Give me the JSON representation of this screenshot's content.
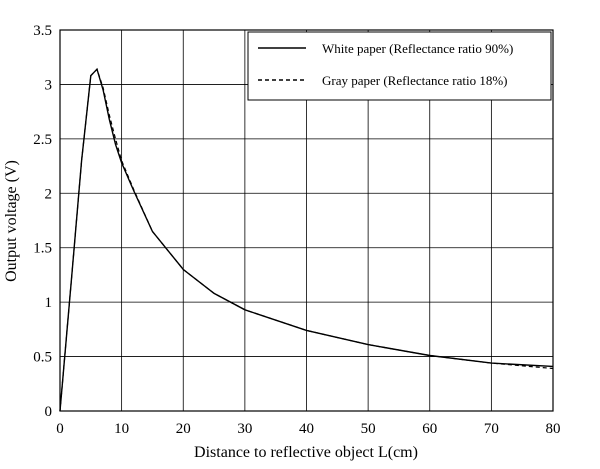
{
  "chart_data": {
    "type": "line",
    "title": "",
    "xlabel": "Distance to reflective object L(cm)",
    "ylabel": "Output voltage (V)",
    "xlim": [
      0,
      80
    ],
    "ylim": [
      0,
      3.5
    ],
    "x_ticks": [
      "0",
      "10",
      "20",
      "30",
      "40",
      "50",
      "60",
      "70",
      "80"
    ],
    "y_ticks": [
      "0",
      "0.5",
      "1",
      "1.5",
      "2",
      "2.5",
      "3",
      "3.5"
    ],
    "grid": true,
    "legend_position": "top-right",
    "series": [
      {
        "name": "White paper (Reflectance ratio 90%)",
        "style": "solid",
        "color": "#000000",
        "x": [
          0,
          2,
          3.5,
          5,
          6,
          7,
          8,
          9,
          10,
          12,
          15,
          20,
          25,
          30,
          40,
          50,
          60,
          70,
          80
        ],
        "y": [
          0,
          1.3,
          2.3,
          3.08,
          3.14,
          2.95,
          2.68,
          2.45,
          2.28,
          2.02,
          1.65,
          1.3,
          1.08,
          0.93,
          0.74,
          0.61,
          0.51,
          0.44,
          0.41
        ]
      },
      {
        "name": "Gray paper (Reflectance ratio 18%)",
        "style": "dashed",
        "color": "#000000",
        "x": [
          0,
          2,
          3.5,
          5,
          6,
          7,
          8,
          9,
          10,
          12,
          15,
          20,
          25,
          30,
          40,
          50,
          60,
          70,
          80
        ],
        "y": [
          0,
          1.3,
          2.3,
          3.08,
          3.14,
          2.97,
          2.72,
          2.5,
          2.3,
          2.03,
          1.65,
          1.3,
          1.08,
          0.93,
          0.74,
          0.61,
          0.51,
          0.44,
          0.39
        ]
      }
    ]
  }
}
